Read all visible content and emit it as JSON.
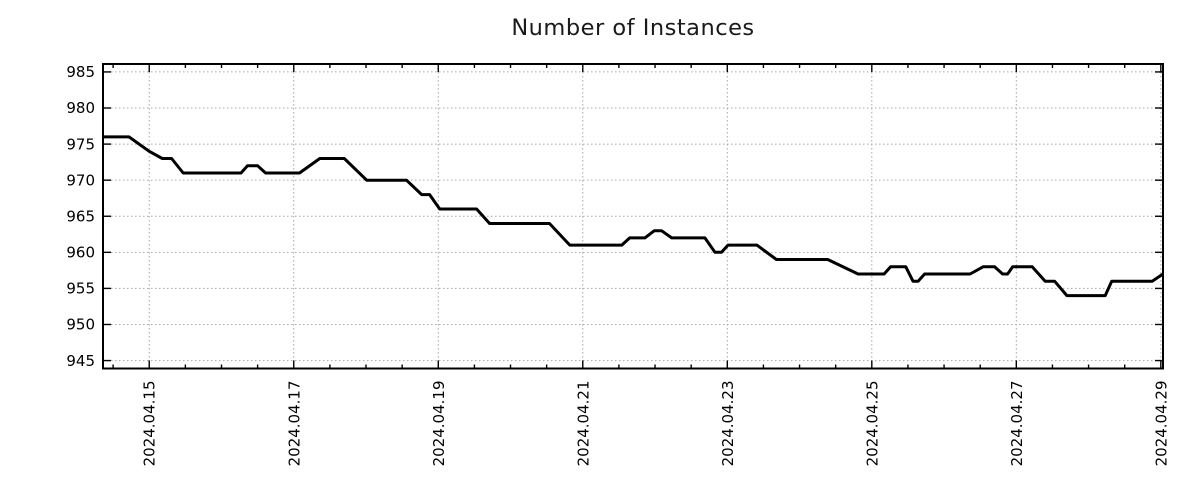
{
  "chart": {
    "title": "Number of Instances"
  },
  "chart_data": {
    "type": "line",
    "title": "Number of Instances",
    "xlabel": "",
    "ylabel": "",
    "x_unit": "day of April 2024 (fractional)",
    "xlim": [
      14.36,
      29.03
    ],
    "ylim": [
      943.9,
      986.1
    ],
    "x_major_ticks": [
      15,
      17,
      19,
      21,
      23,
      25,
      27,
      29
    ],
    "x_tick_labels": [
      "2024.04.15",
      "2024.04.17",
      "2024.04.19",
      "2024.04.21",
      "2024.04.23",
      "2024.04.25",
      "2024.04.27",
      "2024.04.29"
    ],
    "x_minor_tick_step": 0.5,
    "y_ticks": [
      945,
      950,
      955,
      960,
      965,
      970,
      975,
      980,
      985
    ],
    "grid": "dotted on major ticks",
    "legend": "none",
    "series": [
      {
        "name": "instances",
        "color": "#000000",
        "line_width": 3,
        "points": [
          [
            14.36,
            976
          ],
          [
            14.72,
            976
          ],
          [
            15.0,
            974
          ],
          [
            15.18,
            973
          ],
          [
            15.31,
            973
          ],
          [
            15.47,
            971
          ],
          [
            16.27,
            971
          ],
          [
            16.36,
            972
          ],
          [
            16.5,
            972
          ],
          [
            16.61,
            971
          ],
          [
            17.08,
            971
          ],
          [
            17.36,
            973
          ],
          [
            17.7,
            973
          ],
          [
            18.01,
            970
          ],
          [
            18.56,
            970
          ],
          [
            18.77,
            968
          ],
          [
            18.88,
            968
          ],
          [
            19.02,
            966
          ],
          [
            19.53,
            966
          ],
          [
            19.71,
            964
          ],
          [
            20.54,
            964
          ],
          [
            20.82,
            961
          ],
          [
            21.54,
            961
          ],
          [
            21.65,
            962
          ],
          [
            21.86,
            962
          ],
          [
            21.99,
            963
          ],
          [
            22.09,
            963
          ],
          [
            22.23,
            962
          ],
          [
            22.69,
            962
          ],
          [
            22.83,
            960
          ],
          [
            22.92,
            960
          ],
          [
            23.01,
            961
          ],
          [
            23.41,
            961
          ],
          [
            23.68,
            959
          ],
          [
            24.39,
            959
          ],
          [
            24.81,
            957
          ],
          [
            25.17,
            957
          ],
          [
            25.26,
            958
          ],
          [
            25.47,
            958
          ],
          [
            25.57,
            956
          ],
          [
            25.64,
            956
          ],
          [
            25.73,
            957
          ],
          [
            26.36,
            957
          ],
          [
            26.54,
            958
          ],
          [
            26.7,
            958
          ],
          [
            26.81,
            957
          ],
          [
            26.88,
            957
          ],
          [
            26.95,
            958
          ],
          [
            27.22,
            958
          ],
          [
            27.4,
            956
          ],
          [
            27.53,
            956
          ],
          [
            27.7,
            954
          ],
          [
            28.23,
            954
          ],
          [
            28.32,
            956
          ],
          [
            28.88,
            956
          ],
          [
            29.03,
            957
          ]
        ]
      }
    ],
    "style": {
      "line_color": "#000000",
      "grid_color": "#a6a6a6",
      "axis_color": "#000000",
      "tick_label_color": "#000000",
      "title_color": "#1a1a1a",
      "background": "#ffffff"
    }
  }
}
